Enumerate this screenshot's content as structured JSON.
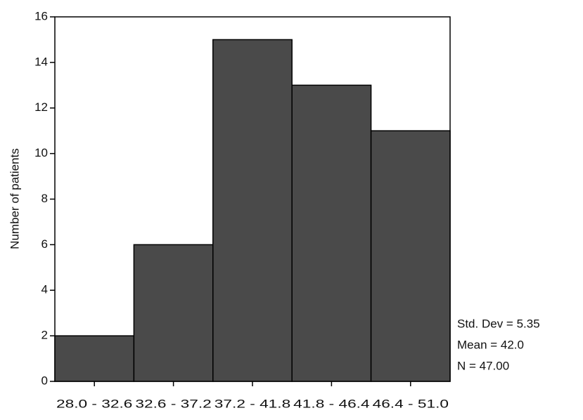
{
  "chart_data": {
    "type": "bar",
    "y_label": "Number of patients",
    "categories": [
      "28.0 - 32.6",
      "32.6 - 37.2",
      "37.2 - 41.8",
      "41.8 - 46.4",
      "46.4 - 51.0"
    ],
    "values": [
      2,
      6,
      15,
      13,
      11
    ],
    "color": "#4a4a4a",
    "ylim": [
      0,
      16
    ],
    "yticks": [
      0,
      2,
      4,
      6,
      8,
      10,
      12,
      14,
      16
    ],
    "grid": false,
    "annotations": [
      "Std. Dev = 5.35",
      "Mean = 42.0",
      "N = 47.00"
    ]
  }
}
